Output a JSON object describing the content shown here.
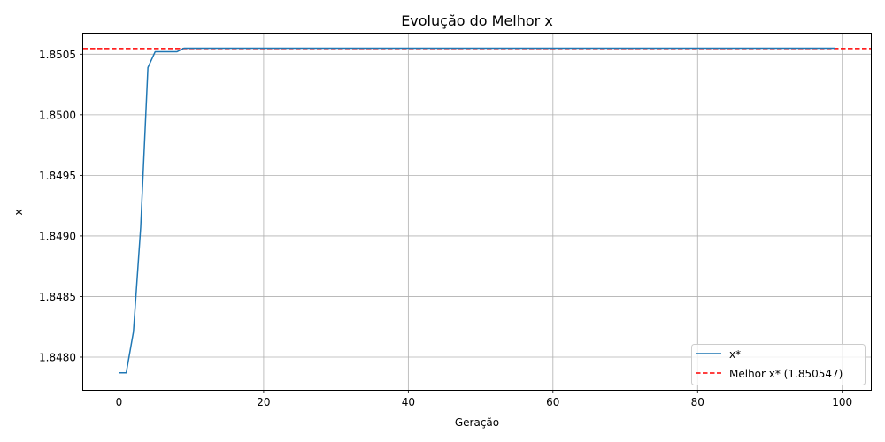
{
  "chart_data": {
    "type": "line",
    "title": "Evolução do Melhor x",
    "xlabel": "Geração",
    "ylabel": "x",
    "xlim": [
      -4.95,
      103.95
    ],
    "ylim": [
      1.84773,
      1.85067
    ],
    "xticks": [
      0,
      20,
      40,
      60,
      80,
      100
    ],
    "yticks": [
      1.848,
      1.8485,
      1.849,
      1.8495,
      1.85,
      1.8505
    ],
    "ytick_labels": [
      "1.8480",
      "1.8485",
      "1.8490",
      "1.8495",
      "1.8500",
      "1.8505"
    ],
    "grid": true,
    "legend_position": "lower-right",
    "series": [
      {
        "name": "x*",
        "color": "#1f77b4",
        "style": "solid",
        "x": [
          0,
          1,
          2,
          3,
          4,
          5,
          6,
          7,
          8,
          9,
          10,
          11,
          12,
          13,
          14,
          15,
          16,
          17,
          18,
          19,
          20,
          21,
          22,
          23,
          24,
          25,
          26,
          27,
          28,
          29,
          30,
          31,
          32,
          33,
          34,
          35,
          36,
          37,
          38,
          39,
          40,
          41,
          42,
          43,
          44,
          45,
          46,
          47,
          48,
          49,
          50,
          51,
          52,
          53,
          54,
          55,
          56,
          57,
          58,
          59,
          60,
          61,
          62,
          63,
          64,
          65,
          66,
          67,
          68,
          69,
          70,
          71,
          72,
          73,
          74,
          75,
          76,
          77,
          78,
          79,
          80,
          81,
          82,
          83,
          84,
          85,
          86,
          87,
          88,
          89,
          90,
          91,
          92,
          93,
          94,
          95,
          96,
          97,
          98,
          99
        ],
        "y": [
          1.84787,
          1.84787,
          1.84821,
          1.84907,
          1.85039,
          1.85052,
          1.85052,
          1.85052,
          1.85052,
          1.85055,
          1.85055,
          1.85055,
          1.85055,
          1.85055,
          1.85055,
          1.85055,
          1.85055,
          1.85055,
          1.85055,
          1.85055,
          1.85055,
          1.85055,
          1.85055,
          1.85055,
          1.85055,
          1.85055,
          1.85055,
          1.85055,
          1.85055,
          1.85055,
          1.85055,
          1.85055,
          1.85055,
          1.85055,
          1.85055,
          1.85055,
          1.85055,
          1.85055,
          1.85055,
          1.85055,
          1.85055,
          1.85055,
          1.85055,
          1.85055,
          1.85055,
          1.85055,
          1.85055,
          1.85055,
          1.85055,
          1.85055,
          1.85055,
          1.85055,
          1.85055,
          1.85055,
          1.85055,
          1.85055,
          1.85055,
          1.85055,
          1.85055,
          1.85055,
          1.85055,
          1.85055,
          1.85055,
          1.85055,
          1.85055,
          1.85055,
          1.85055,
          1.85055,
          1.85055,
          1.85055,
          1.85055,
          1.85055,
          1.85055,
          1.85055,
          1.85055,
          1.85055,
          1.85055,
          1.85055,
          1.85055,
          1.85055,
          1.85055,
          1.85055,
          1.85055,
          1.85055,
          1.85055,
          1.85055,
          1.85055,
          1.85055,
          1.85055,
          1.85055,
          1.85055,
          1.85055,
          1.85055,
          1.85055,
          1.85055,
          1.85055,
          1.85055,
          1.85055,
          1.85055,
          1.85055
        ]
      }
    ],
    "hlines": [
      {
        "name": "Melhor x* (1.850547)",
        "y": 1.850547,
        "color": "#ff0000",
        "style": "dashed"
      }
    ]
  }
}
